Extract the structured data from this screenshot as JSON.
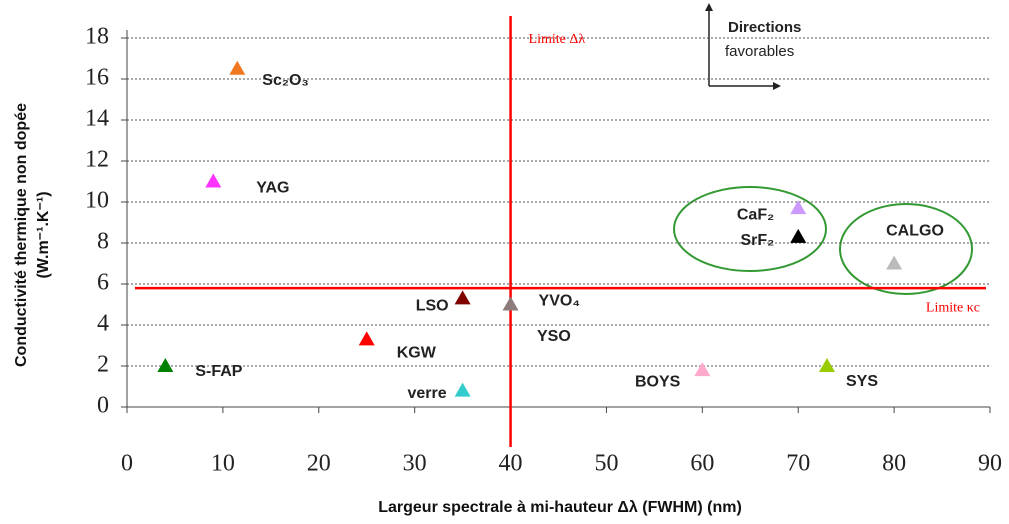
{
  "chart_data": {
    "type": "scatter",
    "x_label": "Largeur spectrale à mi-hauteur Δλ  (FWHM) (nm)",
    "y_label": [
      "Conductivité thermique non dopée",
      "(W.m⁻¹.K⁻¹)"
    ],
    "xlim": [
      0,
      90
    ],
    "xticks": [
      0,
      10,
      20,
      30,
      40,
      50,
      60,
      70,
      80,
      90
    ],
    "ylim": [
      0,
      18
    ],
    "yticks": [
      0,
      2,
      4,
      6,
      8,
      10,
      12,
      14,
      16,
      18
    ],
    "grid": true,
    "points": [
      {
        "label": "Sc₂O₃",
        "x": 11.5,
        "y": 16.5,
        "color": "#f07820"
      },
      {
        "label": "YAG",
        "x": 9,
        "y": 11,
        "color": "#ff33ff"
      },
      {
        "label": "CaF₂",
        "x": 70,
        "y": 9.7,
        "color": "#cc99ff"
      },
      {
        "label": "SrF₂",
        "x": 70,
        "y": 8.3,
        "color": "#000000"
      },
      {
        "label": "CALGO",
        "x": 80,
        "y": 7,
        "color": "#bbbbbb"
      },
      {
        "label": "LSO",
        "x": 35,
        "y": 5.3,
        "color": "#800000"
      },
      {
        "label": "YVO₄",
        "x": 40,
        "y": 5,
        "color": "#8c7c7c"
      },
      {
        "label": "KGW",
        "x": 25,
        "y": 3.3,
        "color": "#ff0000"
      },
      {
        "label": "S-FAP",
        "x": 4,
        "y": 2,
        "color": "#008000"
      },
      {
        "label": "verre",
        "x": 35,
        "y": 0.8,
        "color": "#33cccc"
      },
      {
        "label": "BOYS",
        "x": 60,
        "y": 1.8,
        "color": "#ffaacc"
      },
      {
        "label": "SYS",
        "x": 73,
        "y": 2,
        "color": "#99cc00"
      }
    ],
    "annotations": [
      "YSO",
      "Directions",
      "favorables"
    ],
    "limits": [
      {
        "axis": "x",
        "value": 40,
        "label": "Limite Δλ",
        "color": "#ff0000"
      },
      {
        "axis": "y",
        "value": 5.8,
        "label": "Limite κc",
        "color": "#ff0000"
      }
    ]
  }
}
